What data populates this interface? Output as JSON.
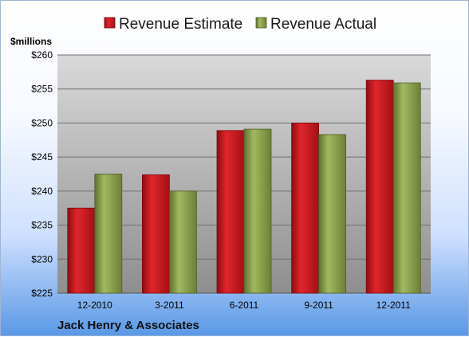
{
  "chart_data": {
    "type": "bar",
    "categories": [
      "12-2010",
      "3-2011",
      "6-2011",
      "9-2011",
      "12-2011"
    ],
    "series": [
      {
        "name": "Revenue Estimate",
        "color": "#c0161c",
        "values": [
          237.5,
          242.4,
          248.9,
          250.0,
          256.3
        ]
      },
      {
        "name": "Revenue Actual",
        "color": "#8aa04a",
        "values": [
          242.5,
          240.0,
          249.1,
          248.3,
          255.9
        ]
      }
    ],
    "ylabel": "$millions",
    "ylim": [
      225,
      260
    ],
    "yticks": [
      225,
      230,
      235,
      240,
      245,
      250,
      255,
      260
    ],
    "ytick_labels": [
      "$225",
      "$230",
      "$235",
      "$240",
      "$245",
      "$250",
      "$255",
      "$260"
    ],
    "grid": true,
    "legend_position": "top"
  },
  "company_name": "Jack Henry & Associates"
}
